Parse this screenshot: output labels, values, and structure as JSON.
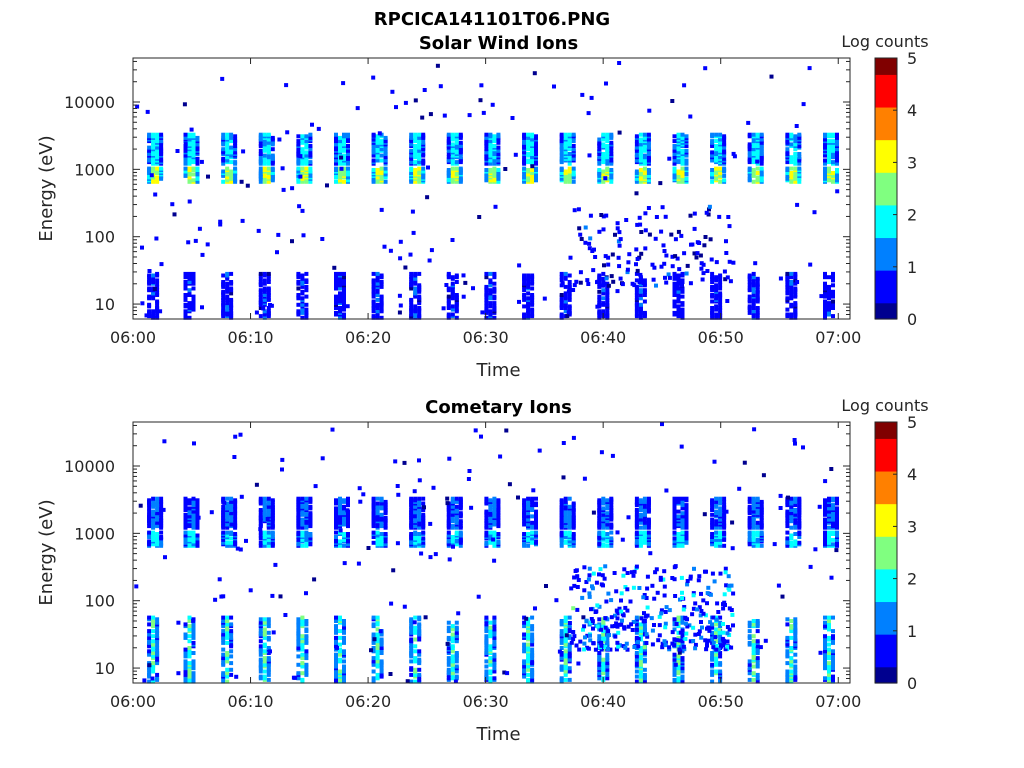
{
  "figure_title": "RPCICA141101T06.PNG",
  "colors": {
    "colormap": [
      "#00008f",
      "#0000ff",
      "#0080ff",
      "#00ffff",
      "#80ff80",
      "#ffff00",
      "#ff8000",
      "#ff0000",
      "#800000"
    ]
  },
  "chart_data": [
    {
      "type": "heatmap",
      "title": "Solar Wind Ions",
      "xlabel": "Time",
      "ylabel": "Energy (eV)",
      "yscale": "log",
      "xlim_minutes": [
        0,
        61
      ],
      "ylim": [
        6,
        45000
      ],
      "x_tick_labels": [
        "06:00",
        "06:10",
        "06:20",
        "06:30",
        "06:40",
        "06:50",
        "07:00"
      ],
      "y_tick_labels": [
        "10",
        "100",
        "1000",
        "10000"
      ],
      "colorbar": {
        "label": "Log counts",
        "ticks": [
          "0",
          "1",
          "2",
          "3",
          "4",
          "5"
        ],
        "range": [
          0,
          5
        ]
      },
      "sweep_times_minutes": [
        1.7,
        4.8,
        8.0,
        11.2,
        14.4,
        17.6,
        20.8,
        24.0,
        27.2,
        30.4,
        33.6,
        36.8,
        40.0,
        43.2,
        46.4,
        49.6,
        52.8,
        56.0,
        59.2
      ],
      "bands": [
        {
          "e_min": 700,
          "e_max": 1100,
          "log_counts_peak": 3.2
        },
        {
          "e_min": 1300,
          "e_max": 3500,
          "log_counts_peak": 2.0
        },
        {
          "e_min": 6,
          "e_max": 30,
          "log_counts_peak": 1.0
        }
      ]
    },
    {
      "type": "heatmap",
      "title": "Cometary Ions",
      "xlabel": "Time",
      "ylabel": "Energy (eV)",
      "yscale": "log",
      "xlim_minutes": [
        0,
        61
      ],
      "ylim": [
        6,
        45000
      ],
      "x_tick_labels": [
        "06:00",
        "06:10",
        "06:20",
        "06:30",
        "06:40",
        "06:50",
        "07:00"
      ],
      "y_tick_labels": [
        "10",
        "100",
        "1000",
        "10000"
      ],
      "colorbar": {
        "label": "Log counts",
        "ticks": [
          "0",
          "1",
          "2",
          "3",
          "4",
          "5"
        ],
        "range": [
          0,
          5
        ]
      },
      "sweep_times_minutes": [
        1.7,
        4.8,
        8.0,
        11.2,
        14.4,
        17.6,
        20.8,
        24.0,
        27.2,
        30.4,
        33.6,
        36.8,
        40.0,
        43.2,
        46.4,
        49.6,
        52.8,
        56.0,
        59.2
      ],
      "bands": [
        {
          "e_min": 700,
          "e_max": 1100,
          "log_counts_peak": 2.0
        },
        {
          "e_min": 1300,
          "e_max": 3500,
          "log_counts_peak": 1.2
        },
        {
          "e_min": 6,
          "e_max": 60,
          "log_counts_peak": 2.5
        }
      ]
    }
  ]
}
